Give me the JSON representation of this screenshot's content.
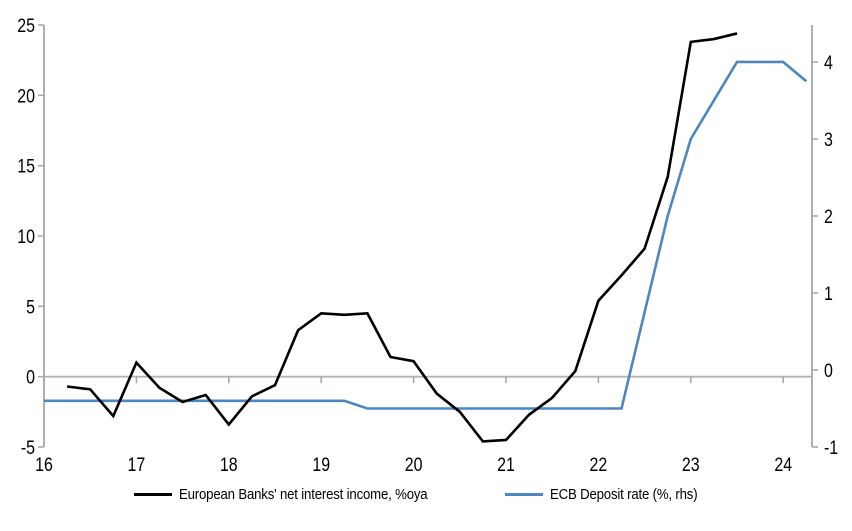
{
  "page": {
    "background": "#ffffff"
  },
  "colors": {
    "axis_line": "#a6a6a6",
    "zero_gridline": "#b5b5b5",
    "tick_text": "#000000",
    "series_nii": "#000000",
    "series_ecb": "#4e86c0"
  },
  "chart_data": {
    "type": "line",
    "title": "",
    "xlabel": "",
    "ylabel_left": "",
    "ylabel_right": "",
    "grid": "zero-line-only",
    "legend_position": "bottom-center",
    "x_axis": {
      "tick_values": [
        16,
        17,
        18,
        19,
        20,
        21,
        22,
        23,
        24
      ],
      "range": [
        16,
        24.31
      ]
    },
    "left_axis": {
      "tick_values": [
        -5,
        0,
        5,
        10,
        15,
        20,
        25
      ],
      "range": [
        -5,
        25
      ]
    },
    "right_axis": {
      "tick_values": [
        -1,
        0,
        1,
        2,
        3,
        4
      ],
      "range": [
        -1,
        4.48
      ]
    },
    "series": [
      {
        "id": "nii",
        "name": "European Banks' net interest income, %oya",
        "axis": "left",
        "color": "#000000",
        "x": [
          16.25,
          16.5,
          16.75,
          17,
          17.25,
          17.5,
          17.75,
          18,
          18.25,
          18.5,
          18.75,
          19,
          19.25,
          19.5,
          19.75,
          20,
          20.25,
          20.5,
          20.75,
          21,
          21.25,
          21.5,
          21.75,
          22,
          22.25,
          22.5,
          22.75,
          23,
          23.25,
          23.5
        ],
        "values": [
          -0.7,
          -0.9,
          -2.8,
          1.0,
          -0.8,
          -1.8,
          -1.3,
          -3.4,
          -1.4,
          -0.6,
          3.3,
          4.5,
          4.4,
          4.5,
          1.4,
          1.1,
          -1.2,
          -2.5,
          -4.6,
          -4.5,
          -2.7,
          -1.5,
          0.4,
          5.4,
          7.2,
          9.1,
          14.2,
          23.8,
          24.0,
          24.4
        ]
      },
      {
        "id": "ecb",
        "name": "ECB Deposit rate (%, rhs)",
        "axis": "right",
        "color": "#4e86c0",
        "x": [
          16,
          16.25,
          16.5,
          16.75,
          17,
          17.25,
          17.5,
          17.75,
          18,
          18.25,
          18.5,
          18.75,
          19,
          19.25,
          19.5,
          19.75,
          20,
          20.25,
          20.5,
          20.75,
          21,
          21.25,
          21.5,
          21.75,
          22,
          22.25,
          22.5,
          22.75,
          23,
          23.25,
          23.5,
          23.75,
          24,
          24.25
        ],
        "values": [
          -0.4,
          -0.4,
          -0.4,
          -0.4,
          -0.4,
          -0.4,
          -0.4,
          -0.4,
          -0.4,
          -0.4,
          -0.4,
          -0.4,
          -0.4,
          -0.4,
          -0.5,
          -0.5,
          -0.5,
          -0.5,
          -0.5,
          -0.5,
          -0.5,
          -0.5,
          -0.5,
          -0.5,
          -0.5,
          -0.5,
          0.75,
          2.0,
          3.0,
          3.5,
          4.0,
          4.0,
          4.0,
          3.75
        ]
      }
    ]
  }
}
